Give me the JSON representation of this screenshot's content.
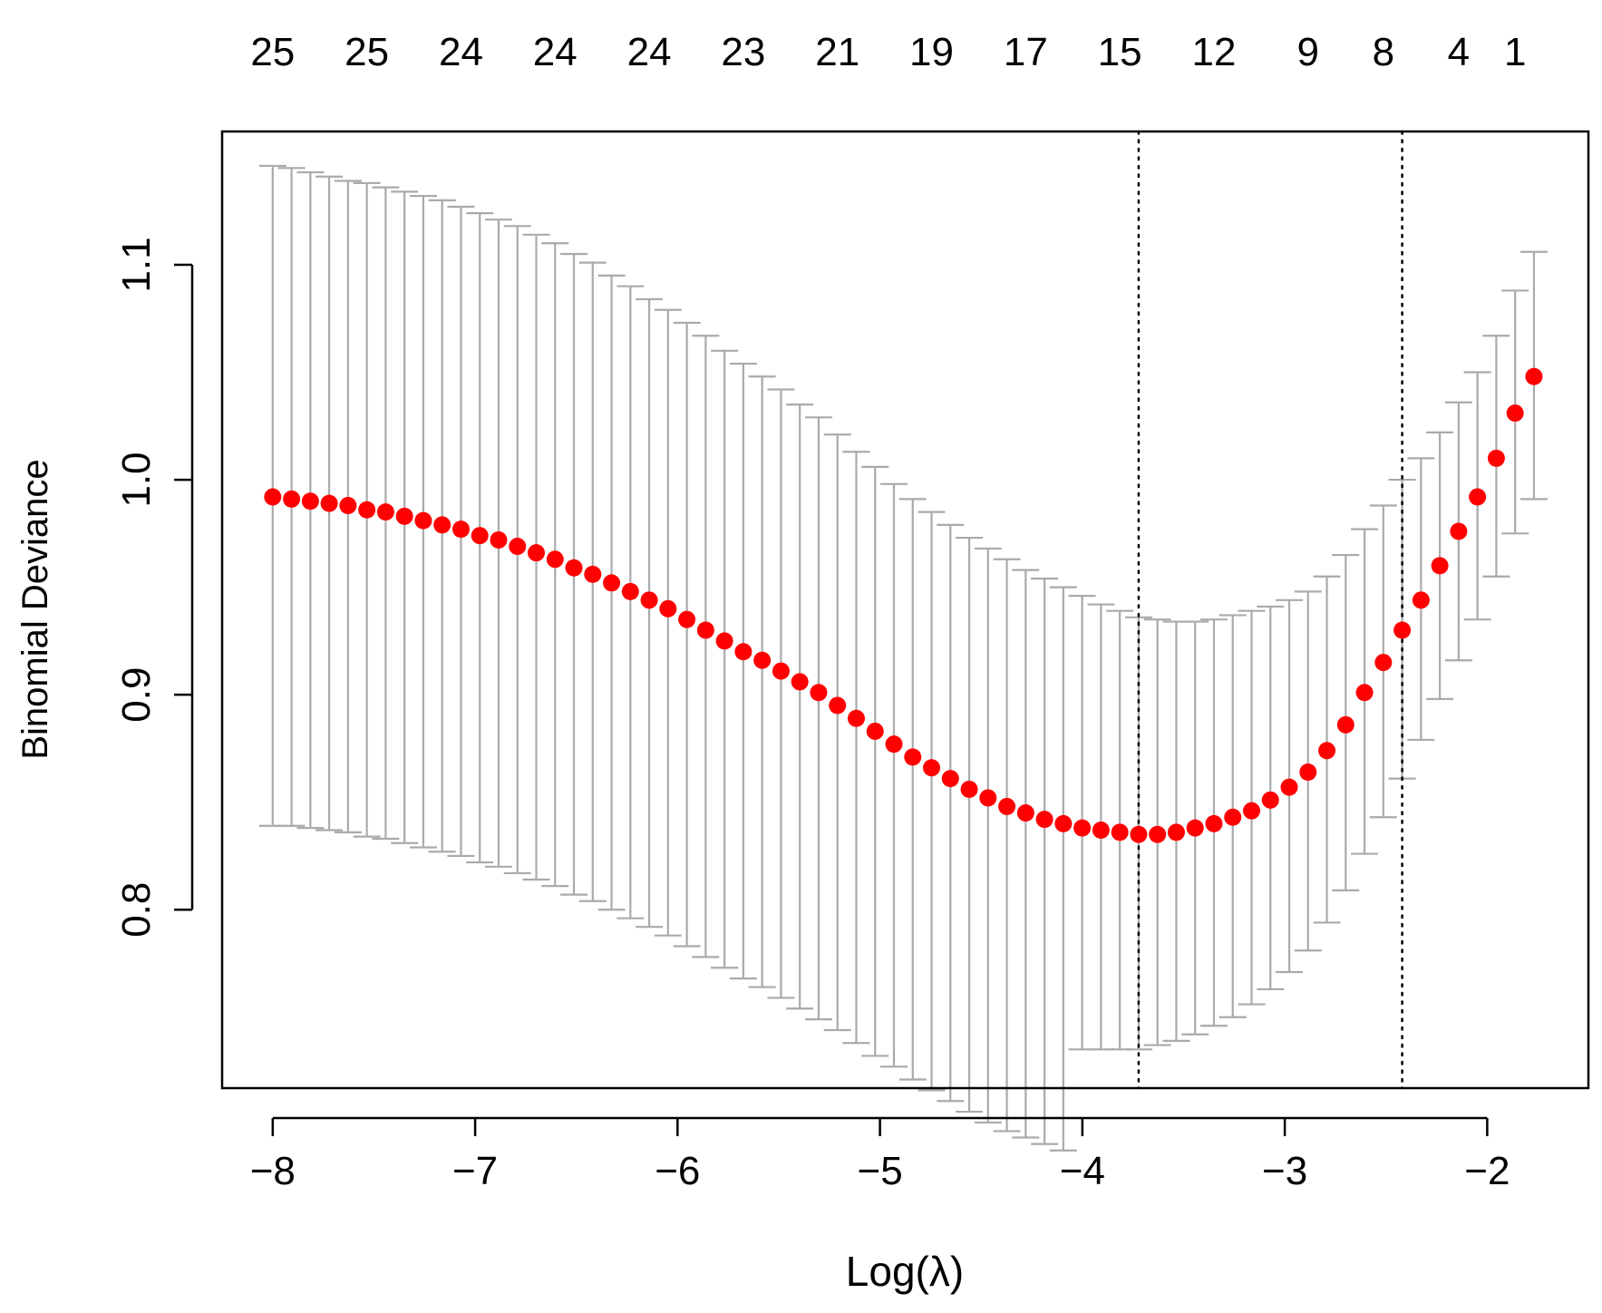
{
  "chart_data": {
    "type": "scatter",
    "xlabel": "Log(λ)",
    "ylabel": "Binomial Deviance",
    "xlim": [
      -8.25,
      -1.5
    ],
    "ylim": [
      0.717,
      1.162
    ],
    "x_ticks": [
      -8,
      -7,
      -6,
      -5,
      -4,
      -3,
      -2
    ],
    "x_tick_labels": [
      "−8",
      "−7",
      "−6",
      "−5",
      "−4",
      "−3",
      "−2"
    ],
    "y_ticks": [
      0.8,
      0.9,
      1.0,
      1.1
    ],
    "y_tick_labels": [
      "0.8",
      "0.9",
      "1.0",
      "1.1"
    ],
    "top_axis": {
      "x": [
        -8.0,
        -7.535,
        -7.07,
        -6.605,
        -6.14,
        -5.675,
        -5.21,
        -4.745,
        -4.28,
        -3.815,
        -3.35,
        -2.885,
        -2.513,
        -2.141,
        -1.862
      ],
      "labels": [
        "25",
        "25",
        "24",
        "24",
        "24",
        "23",
        "21",
        "19",
        "17",
        "15",
        "12",
        "9",
        "8",
        "4",
        "1"
      ]
    },
    "reference_lines_x": [
      -3.722,
      -2.42
    ],
    "grid": false,
    "legend": "none",
    "colors": {
      "points": "#ff0000",
      "error_bars": "#aaaaaa",
      "reference_lines": "#000000",
      "frame": "#000000"
    },
    "series": [
      {
        "x": [
          -8.0,
          -7.907,
          -7.814,
          -7.721,
          -7.628,
          -7.535,
          -7.442,
          -7.349,
          -7.256,
          -7.163,
          -7.07,
          -6.977,
          -6.884,
          -6.791,
          -6.698,
          -6.605,
          -6.512,
          -6.419,
          -6.326,
          -6.233,
          -6.14,
          -6.047,
          -5.954,
          -5.861,
          -5.768,
          -5.675,
          -5.582,
          -5.489,
          -5.396,
          -5.303,
          -5.21,
          -5.117,
          -5.024,
          -4.931,
          -4.838,
          -4.745,
          -4.652,
          -4.559,
          -4.466,
          -4.373,
          -4.28,
          -4.187,
          -4.094,
          -4.001,
          -3.908,
          -3.815,
          -3.722,
          -3.629,
          -3.536,
          -3.443,
          -3.35,
          -3.257,
          -3.164,
          -3.071,
          -2.978,
          -2.885,
          -2.792,
          -2.699,
          -2.606,
          -2.513,
          -2.42,
          -2.327,
          -2.234,
          -2.141,
          -2.048,
          -1.955,
          -1.862,
          -1.769
        ],
        "y": [
          0.992,
          0.991,
          0.99,
          0.989,
          0.988,
          0.986,
          0.985,
          0.983,
          0.981,
          0.979,
          0.977,
          0.974,
          0.972,
          0.969,
          0.966,
          0.963,
          0.959,
          0.956,
          0.952,
          0.948,
          0.944,
          0.94,
          0.935,
          0.93,
          0.925,
          0.92,
          0.916,
          0.911,
          0.906,
          0.901,
          0.895,
          0.889,
          0.883,
          0.877,
          0.871,
          0.866,
          0.861,
          0.856,
          0.852,
          0.848,
          0.845,
          0.842,
          0.84,
          0.838,
          0.837,
          0.836,
          0.835,
          0.835,
          0.836,
          0.838,
          0.84,
          0.843,
          0.846,
          0.851,
          0.857,
          0.864,
          0.874,
          0.886,
          0.901,
          0.915,
          0.93,
          0.944,
          0.96,
          0.976,
          0.992,
          1.01,
          1.031,
          1.048
        ],
        "lower": [
          0.839,
          0.839,
          0.838,
          0.837,
          0.836,
          0.834,
          0.833,
          0.831,
          0.829,
          0.827,
          0.825,
          0.822,
          0.82,
          0.817,
          0.814,
          0.811,
          0.807,
          0.804,
          0.8,
          0.796,
          0.792,
          0.788,
          0.783,
          0.778,
          0.773,
          0.768,
          0.764,
          0.759,
          0.754,
          0.749,
          0.744,
          0.738,
          0.732,
          0.727,
          0.721,
          0.716,
          0.711,
          0.706,
          0.701,
          0.697,
          0.694,
          0.691,
          0.688,
          0.735,
          0.735,
          0.735,
          0.735,
          0.737,
          0.739,
          0.742,
          0.746,
          0.75,
          0.756,
          0.763,
          0.771,
          0.781,
          0.794,
          0.809,
          0.826,
          0.843,
          0.861,
          0.879,
          0.898,
          0.916,
          0.935,
          0.955,
          0.975,
          0.991
        ],
        "upper": [
          1.146,
          1.145,
          1.143,
          1.141,
          1.139,
          1.138,
          1.136,
          1.134,
          1.132,
          1.13,
          1.127,
          1.124,
          1.121,
          1.118,
          1.114,
          1.11,
          1.105,
          1.101,
          1.095,
          1.09,
          1.084,
          1.079,
          1.073,
          1.067,
          1.06,
          1.054,
          1.048,
          1.042,
          1.035,
          1.029,
          1.021,
          1.013,
          1.006,
          0.998,
          0.991,
          0.985,
          0.979,
          0.973,
          0.968,
          0.963,
          0.958,
          0.954,
          0.95,
          0.946,
          0.942,
          0.939,
          0.936,
          0.935,
          0.934,
          0.934,
          0.935,
          0.937,
          0.939,
          0.941,
          0.944,
          0.948,
          0.955,
          0.965,
          0.977,
          0.988,
          1.0,
          1.01,
          1.022,
          1.036,
          1.05,
          1.067,
          1.088,
          1.106
        ]
      }
    ]
  }
}
